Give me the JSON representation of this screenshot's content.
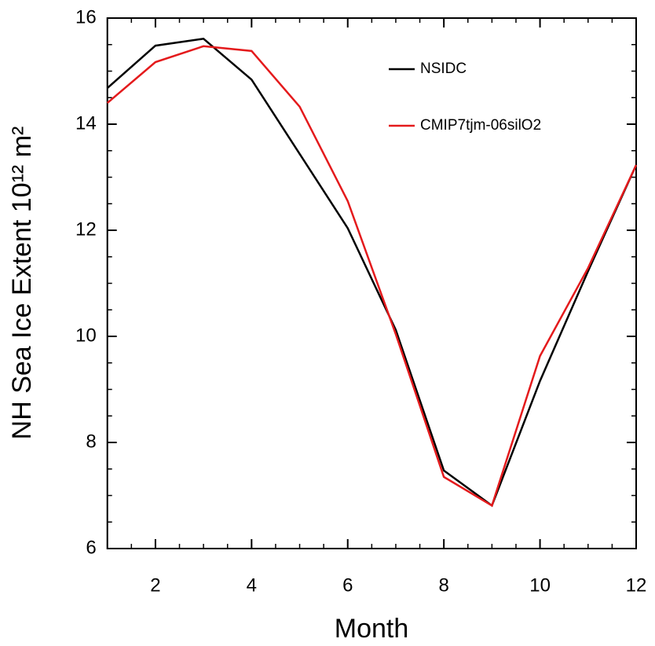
{
  "chart_data": {
    "type": "line",
    "xlabel": "Month",
    "ylabel": "NH Sea Ice Extent 10¹² m²",
    "x": [
      1,
      2,
      3,
      4,
      5,
      6,
      7,
      8,
      9,
      10,
      11,
      12
    ],
    "series": [
      {
        "name": "NSIDC",
        "color": "#000000",
        "values": [
          14.68,
          15.48,
          15.61,
          14.84,
          13.44,
          12.04,
          10.12,
          7.47,
          6.81,
          9.16,
          11.23,
          13.23
        ]
      },
      {
        "name": "CMIP7tjm-06silO2",
        "color": "#e41a1c",
        "values": [
          14.4,
          15.17,
          15.47,
          15.38,
          14.33,
          12.55,
          10.04,
          7.35,
          6.81,
          9.63,
          11.29,
          13.23
        ]
      }
    ],
    "xlim": [
      1,
      12
    ],
    "xticks": [
      2,
      4,
      6,
      8,
      10,
      12
    ],
    "ylim": [
      6,
      16
    ],
    "yticks": [
      6,
      8,
      10,
      12,
      14,
      16
    ],
    "legend": "upper right"
  }
}
